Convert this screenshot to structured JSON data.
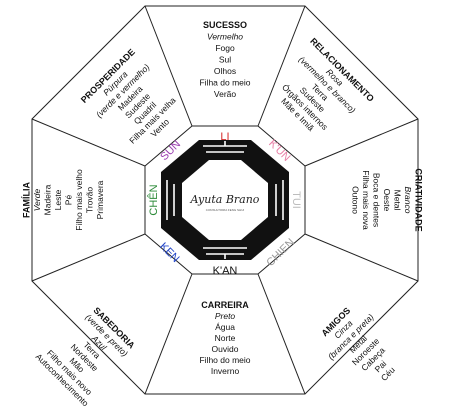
{
  "sections": {
    "s": {
      "title": "SUCESSO",
      "color": "Vermelho",
      "items": [
        "Fogo",
        "Sul",
        "Olhos",
        "Filha do meio",
        "Verão"
      ]
    },
    "se": {
      "title": "RELACIONAMENTO",
      "color": "Rosa",
      "color2": "(vermelho e branco)",
      "items": [
        "Terra",
        "Sudeste",
        "Órgãos internos",
        "Mãe e Imiã"
      ]
    },
    "e": {
      "title": "CRIATIVIDADE",
      "color": "Branco",
      "items": [
        "Metal",
        "Oeste",
        "Boca e dentes",
        "Filha mais nova",
        "Outono"
      ]
    },
    "ne": {
      "title": "AMIGOS",
      "color": "Cinza",
      "color2": "(branca e preta)",
      "items": [
        "Metal",
        "Noroeste",
        "Cabeça",
        "Pai",
        "Céu"
      ]
    },
    "n": {
      "title": "CARREIRA",
      "color": "Preto",
      "items": [
        "Água",
        "Norte",
        "Ouvido",
        "Filho do meio",
        "Inverno"
      ]
    },
    "nw": {
      "title": "SABEDORIA",
      "color": "(verde e preto)",
      "color2": "Azul",
      "items": [
        "Terra",
        "Nordeste",
        "Mão",
        "Filho mais novo",
        "Autoconhecimento"
      ]
    },
    "w": {
      "title": "FAMÍLIA",
      "color": "Verde",
      "items": [
        "Madeira",
        "Leste",
        "Pé",
        "Filho mais velho",
        "Trovão",
        "Primavera"
      ]
    },
    "sw": {
      "title": "PROSPERIDADE",
      "color": "Púrpura",
      "color2": "(verde e vermelho)",
      "items": [
        "Madeira",
        "Sudeste",
        "Quadril",
        "Filha mais velha",
        "Vento"
      ]
    }
  },
  "trigrams": {
    "li": {
      "label": "LI",
      "color": "#d62828"
    },
    "kun": {
      "label": "K'UN",
      "color": "#e87fa6"
    },
    "tui": {
      "label": "TUI",
      "color": "#bdbdbd"
    },
    "chien": {
      "label": "CHIEN",
      "color": "#9a9a9a"
    },
    "kan": {
      "label": "K'AN",
      "color": "#111111"
    },
    "ken": {
      "label": "KEN",
      "color": "#2346c8"
    },
    "chen": {
      "label": "CHÊN",
      "color": "#2e8b3a"
    },
    "sun": {
      "label": "SUN",
      "color": "#9b3fb0"
    }
  },
  "logo": {
    "script": "Ayuta Brano",
    "tagline": "CONSULTORIA FENG SHUI"
  }
}
